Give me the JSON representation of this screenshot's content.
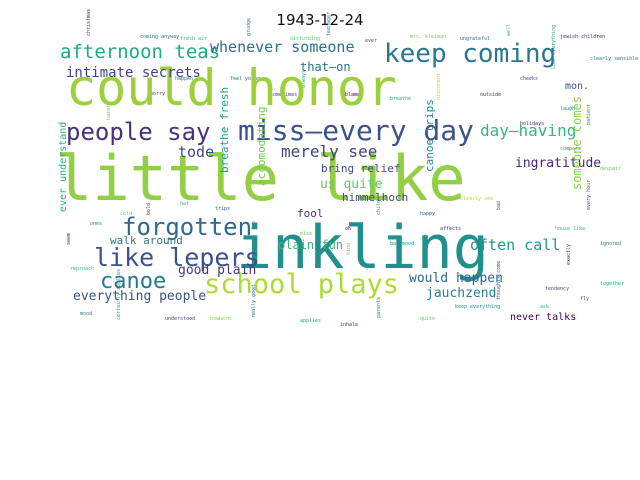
{
  "title": "1943-12-24",
  "cloud": {
    "primary_words": [
      {
        "text": "could honor",
        "color": "#9ccf3a"
      },
      {
        "text": "little like",
        "color": "#93cf45"
      },
      {
        "text": "inkling",
        "color": "#21908c"
      },
      {
        "text": "people say",
        "color": "#46327e"
      },
      {
        "text": "miss—every day",
        "color": "#3b528b"
      },
      {
        "text": "keep coming",
        "color": "#2a788e"
      },
      {
        "text": "afternoon teas",
        "color": "#22a884"
      },
      {
        "text": "whenever someone",
        "color": "#2c718e"
      },
      {
        "text": "intimate secrets",
        "color": "#414487"
      },
      {
        "text": "day—having",
        "color": "#35b779"
      },
      {
        "text": "forgotten",
        "color": "#31688e"
      },
      {
        "text": "like lepers",
        "color": "#3b528b"
      },
      {
        "text": "merely see",
        "color": "#414487"
      },
      {
        "text": "often call",
        "color": "#1f9a8a"
      },
      {
        "text": "canoe",
        "color": "#2a788e"
      },
      {
        "text": "school plays",
        "color": "#addc30"
      },
      {
        "text": "tode",
        "color": "#3e4a89"
      },
      {
        "text": "good plain",
        "color": "#443a83"
      },
      {
        "text": "everything people",
        "color": "#3b528b"
      },
      {
        "text": "would happen",
        "color": "#31688e"
      },
      {
        "text": "jauchzend",
        "color": "#26828e"
      },
      {
        "text": "ingratitude",
        "color": "#482878"
      },
      {
        "text": "bring relief",
        "color": "#3e4a89"
      },
      {
        "text": "us quite",
        "color": "#5ec962"
      },
      {
        "text": "himmelhoch",
        "color": "#3e4a89"
      },
      {
        "text": "that—on",
        "color": "#2c718e"
      },
      {
        "text": "walk around",
        "color": "#2a788e"
      },
      {
        "text": "plain fun",
        "color": "#35b779"
      },
      {
        "text": "fool",
        "color": "#443983"
      },
      {
        "text": "never talks",
        "color": "#440154"
      },
      {
        "text": "mon.",
        "color": "#3b528b"
      },
      {
        "text": "canoe trips",
        "color": "#21918c"
      },
      {
        "text": "breathe fresh",
        "color": "#1fa187"
      },
      {
        "text": "accomodating",
        "color": "#6ece58"
      },
      {
        "text": "someone comes",
        "color": "#86d549"
      },
      {
        "text": "ever understand",
        "color": "#2db27d"
      }
    ],
    "filler_words": [
      {
        "text": "christmas",
        "color": "#482878"
      },
      {
        "text": "coming anyway",
        "color": "#2c718e"
      },
      {
        "text": "fresh air",
        "color": "#35b779"
      },
      {
        "text": "teenager",
        "color": "#21918c"
      },
      {
        "text": "ever",
        "color": "#3e4a89"
      },
      {
        "text": "disturbing",
        "color": "#5ec962"
      },
      {
        "text": "grudge",
        "color": "#26828e"
      },
      {
        "text": "mrs. kleiman",
        "color": "#6ece58"
      },
      {
        "text": "ungrateful",
        "color": "#31688e"
      },
      {
        "text": "well",
        "color": "#35b779"
      },
      {
        "text": "jewish children",
        "color": "#482878"
      },
      {
        "text": "clearly sensible",
        "color": "#2a788e"
      },
      {
        "text": "like everything",
        "color": "#1fa187"
      },
      {
        "text": "cheeks",
        "color": "#3b528b"
      },
      {
        "text": "outside",
        "color": "#46327e"
      },
      {
        "text": "disconent",
        "color": "#addc30"
      },
      {
        "text": "breathe",
        "color": "#22a884"
      },
      {
        "text": "blame",
        "color": "#440154"
      },
      {
        "text": "always",
        "color": "#2db27d"
      },
      {
        "text": "sometimes",
        "color": "#443a83"
      },
      {
        "text": "feel young",
        "color": "#31688e"
      },
      {
        "text": "doubt",
        "color": "#86d549"
      },
      {
        "text": "happen",
        "color": "#2c718e"
      },
      {
        "text": "worry",
        "color": "#3e4a89"
      },
      {
        "text": "hazard",
        "color": "#5ec962"
      },
      {
        "text": "laugh",
        "color": "#21918c"
      },
      {
        "text": "holidays",
        "color": "#482878"
      },
      {
        "text": "patient",
        "color": "#26828e"
      },
      {
        "text": "compare",
        "color": "#1fa187"
      },
      {
        "text": "despair",
        "color": "#6ece58"
      },
      {
        "text": "every hour",
        "color": "#3b528b"
      },
      {
        "text": "house like",
        "color": "#35b779"
      },
      {
        "text": "ignored",
        "color": "#2a788e"
      },
      {
        "text": "exactly",
        "color": "#46327e"
      },
      {
        "text": "together",
        "color": "#22a884"
      },
      {
        "text": "tendency",
        "color": "#3e4a89"
      },
      {
        "text": "bad",
        "color": "#31688e"
      },
      {
        "text": "clearly see",
        "color": "#addc30"
      },
      {
        "text": "happy",
        "color": "#2c718e"
      },
      {
        "text": "child",
        "color": "#1f9a8a"
      },
      {
        "text": "oh",
        "color": "#440154"
      },
      {
        "text": "else",
        "color": "#5ec962"
      },
      {
        "text": "fun",
        "color": "#21918c"
      },
      {
        "text": "trips",
        "color": "#3b528b"
      },
      {
        "text": "hat",
        "color": "#2db27d"
      },
      {
        "text": "bold",
        "color": "#443983"
      },
      {
        "text": "cold",
        "color": "#6ece58"
      },
      {
        "text": "ones",
        "color": "#26828e"
      },
      {
        "text": "seem",
        "color": "#482878"
      },
      {
        "text": "reproach",
        "color": "#35b779"
      },
      {
        "text": "mood",
        "color": "#2a788e"
      },
      {
        "text": "certainly applies",
        "color": "#1fa187"
      },
      {
        "text": "understood",
        "color": "#3e4a89"
      },
      {
        "text": "nowhere",
        "color": "#86d549"
      },
      {
        "text": "really good",
        "color": "#31688e"
      },
      {
        "text": "applies",
        "color": "#22a884"
      },
      {
        "text": "inhale",
        "color": "#46327e"
      },
      {
        "text": "parents",
        "color": "#2c718e"
      },
      {
        "text": "quite",
        "color": "#5ec962"
      },
      {
        "text": "keep everything",
        "color": "#21918c"
      },
      {
        "text": "thoughts come",
        "color": "#3b528b"
      },
      {
        "text": "ask",
        "color": "#2db27d"
      },
      {
        "text": "fly",
        "color": "#443a83"
      },
      {
        "text": "kind",
        "color": "#6ece58"
      },
      {
        "text": "bad mood",
        "color": "#1f9a8a"
      },
      {
        "text": "affects",
        "color": "#482878"
      }
    ]
  }
}
